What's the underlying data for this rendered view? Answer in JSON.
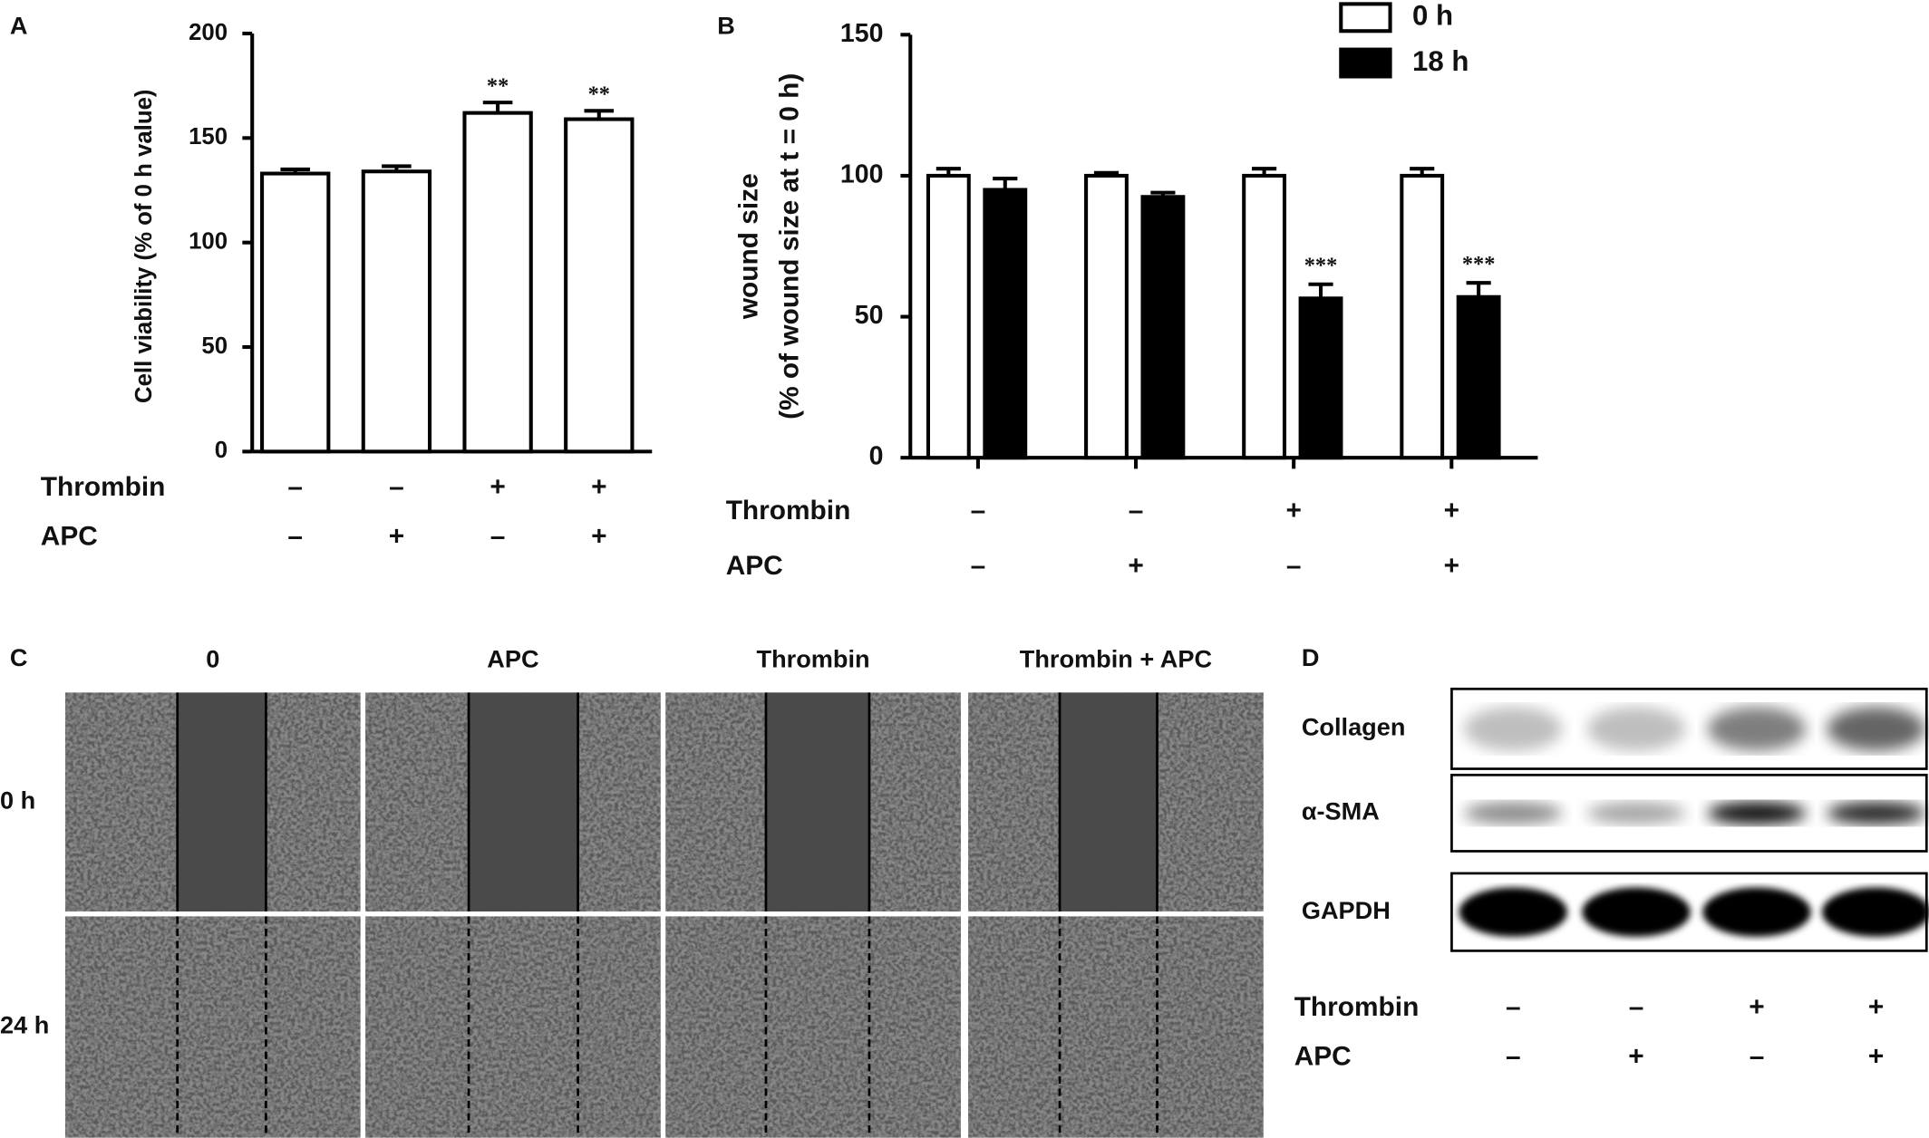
{
  "chart_data": [
    {
      "type": "bar",
      "letter": "A",
      "ylabel": "Cell viability (% of 0 h value)",
      "ylim": [
        0,
        200
      ],
      "yticks": [
        0,
        50,
        100,
        150,
        200
      ],
      "color": "#ffffff",
      "values": [
        133,
        134,
        162,
        159
      ],
      "errors": [
        2,
        2.5,
        5,
        4
      ],
      "significance": [
        null,
        null,
        "**",
        "**"
      ],
      "factors": [
        {
          "name": "Thrombin",
          "levels": [
            "–",
            "–",
            "+",
            "+"
          ]
        },
        {
          "name": "APC",
          "levels": [
            "–",
            "+",
            "–",
            "+"
          ]
        }
      ]
    },
    {
      "type": "grouped-bar",
      "letter": "B",
      "ylabel": [
        "wound size",
        "(% of wound size at t = 0 h)"
      ],
      "ylim": [
        0,
        150
      ],
      "yticks": [
        0,
        50,
        100,
        150
      ],
      "series": [
        {
          "name": "0 h",
          "color": "#ffffff",
          "values": [
            100,
            100,
            100,
            100
          ],
          "errors": [
            2.5,
            1,
            2.5,
            2.5
          ],
          "significance": [
            null,
            null,
            null,
            null
          ]
        },
        {
          "name": "18 h",
          "color": "#000000",
          "values": [
            95,
            92.5,
            56.5,
            57
          ],
          "errors": [
            4,
            1.5,
            5,
            5
          ],
          "significance": [
            null,
            null,
            "***",
            "***"
          ]
        }
      ],
      "factors": [
        {
          "name": "Thrombin",
          "levels": [
            "–",
            "–",
            "+",
            "+"
          ]
        },
        {
          "name": "APC",
          "levels": [
            "–",
            "+",
            "–",
            "+"
          ]
        }
      ]
    }
  ],
  "panel_c": {
    "letter": "C",
    "columns": [
      "0",
      "APC",
      "Thrombin",
      "Thrombin + APC"
    ],
    "rows": [
      "0 h",
      "24 h"
    ]
  },
  "panel_d": {
    "letter": "D",
    "bands": [
      "Collagen",
      "α-SMA",
      "GAPDH"
    ],
    "factors": [
      {
        "name": "Thrombin",
        "levels": [
          "–",
          "–",
          "+",
          "+"
        ]
      },
      {
        "name": "APC",
        "levels": [
          "–",
          "+",
          "–",
          "+"
        ]
      }
    ]
  }
}
